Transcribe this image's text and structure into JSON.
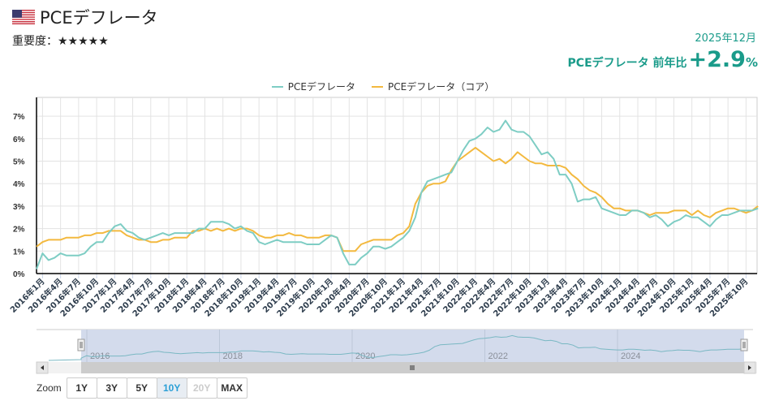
{
  "header": {
    "title": "PCEデフレータ",
    "importance_label": "重要度：",
    "importance_stars": "★★★★★",
    "date": "2025年12月",
    "headline_label": "PCEデフレータ 前年比",
    "headline_value": "+2.9",
    "headline_unit": "%"
  },
  "legend": [
    {
      "label": "PCEデフレータ",
      "color": "#7ecdc4"
    },
    {
      "label": "PCEデフレータ（コア）",
      "color": "#f3b93f"
    }
  ],
  "zoom": {
    "label": "Zoom",
    "buttons": [
      {
        "label": "1Y",
        "state": "normal"
      },
      {
        "label": "3Y",
        "state": "normal"
      },
      {
        "label": "5Y",
        "state": "normal"
      },
      {
        "label": "10Y",
        "state": "active"
      },
      {
        "label": "20Y",
        "state": "disabled"
      },
      {
        "label": "MAX",
        "state": "normal"
      }
    ]
  },
  "navigator": {
    "year_labels": [
      "2016",
      "2018",
      "2020",
      "2022",
      "2024"
    ]
  },
  "chart_data": {
    "type": "line",
    "title": "PCEデフレータ",
    "xlabel": "",
    "ylabel": "",
    "ylim": [
      0,
      7.5
    ],
    "y_ticks": [
      "0%",
      "1%",
      "2%",
      "3%",
      "4%",
      "5%",
      "6%",
      "7%"
    ],
    "x_tick_labels": [
      "2016年1月",
      "2016年4月",
      "2016年7月",
      "2016年10月",
      "2017年1月",
      "2017年4月",
      "2017年7月",
      "2017年10月",
      "2018年1月",
      "2018年4月",
      "2018年7月",
      "2018年10月",
      "2019年1月",
      "2019年4月",
      "2019年7月",
      "2019年10月",
      "2020年1月",
      "2020年4月",
      "2020年7月",
      "2020年10月",
      "2021年1月",
      "2021年4月",
      "2021年7月",
      "2021年10月",
      "2022年1月",
      "2022年4月",
      "2022年7月",
      "2022年10月",
      "2023年1月",
      "2023年4月",
      "2023年7月",
      "2023年10月",
      "2024年1月",
      "2024年4月",
      "2024年7月",
      "2024年10月",
      "2025年1月",
      "2025年4月",
      "2025年7月",
      "2025年10月"
    ],
    "grid": true,
    "legend_position": "top",
    "x_start": "2015年12月",
    "x_end": "2025年12月",
    "series": [
      {
        "name": "PCEデフレータ",
        "color": "#7ecdc4",
        "values": [
          0.2,
          0.9,
          0.6,
          0.7,
          0.9,
          0.8,
          0.8,
          0.8,
          0.9,
          1.2,
          1.4,
          1.4,
          1.8,
          2.1,
          2.2,
          1.9,
          1.8,
          1.6,
          1.5,
          1.6,
          1.7,
          1.8,
          1.7,
          1.8,
          1.8,
          1.8,
          1.8,
          2.0,
          2.0,
          2.3,
          2.3,
          2.3,
          2.2,
          2.0,
          2.1,
          1.9,
          1.8,
          1.4,
          1.3,
          1.4,
          1.5,
          1.4,
          1.4,
          1.4,
          1.4,
          1.3,
          1.3,
          1.3,
          1.5,
          1.7,
          1.6,
          0.9,
          0.4,
          0.4,
          0.7,
          0.9,
          1.2,
          1.2,
          1.1,
          1.2,
          1.4,
          1.6,
          1.9,
          2.5,
          3.6,
          4.1,
          4.2,
          4.3,
          4.4,
          4.5,
          5.0,
          5.5,
          5.9,
          6.0,
          6.2,
          6.5,
          6.3,
          6.4,
          6.8,
          6.4,
          6.3,
          6.3,
          6.1,
          5.7,
          5.3,
          5.4,
          5.1,
          4.4,
          4.4,
          4.0,
          3.2,
          3.3,
          3.3,
          3.4,
          2.9,
          2.8,
          2.7,
          2.6,
          2.6,
          2.8,
          2.8,
          2.7,
          2.5,
          2.6,
          2.4,
          2.1,
          2.3,
          2.4,
          2.6,
          2.5,
          2.5,
          2.3,
          2.1,
          2.4,
          2.6,
          2.6,
          2.7,
          2.8,
          2.8,
          2.8,
          2.9
        ]
      },
      {
        "name": "PCEデフレータ（コア）",
        "color": "#f3b93f",
        "values": [
          1.2,
          1.4,
          1.5,
          1.5,
          1.5,
          1.6,
          1.6,
          1.6,
          1.7,
          1.7,
          1.8,
          1.8,
          1.9,
          1.9,
          1.9,
          1.7,
          1.6,
          1.5,
          1.5,
          1.4,
          1.4,
          1.5,
          1.5,
          1.6,
          1.6,
          1.6,
          1.9,
          1.9,
          2.0,
          1.9,
          2.0,
          1.9,
          2.0,
          1.9,
          2.0,
          2.0,
          1.9,
          1.7,
          1.6,
          1.6,
          1.7,
          1.7,
          1.8,
          1.7,
          1.7,
          1.6,
          1.6,
          1.6,
          1.7,
          1.7,
          1.6,
          1.0,
          1.0,
          1.0,
          1.3,
          1.4,
          1.5,
          1.5,
          1.5,
          1.5,
          1.7,
          1.8,
          2.1,
          3.1,
          3.6,
          3.9,
          4.0,
          4.0,
          4.1,
          4.6,
          5.0,
          5.2,
          5.4,
          5.6,
          5.4,
          5.2,
          5.0,
          5.1,
          4.9,
          5.1,
          5.4,
          5.2,
          5.0,
          4.9,
          4.9,
          4.8,
          4.8,
          4.8,
          4.7,
          4.4,
          4.2,
          3.9,
          3.7,
          3.6,
          3.4,
          3.1,
          2.9,
          2.9,
          2.8,
          2.8,
          2.8,
          2.7,
          2.6,
          2.7,
          2.7,
          2.7,
          2.8,
          2.8,
          2.8,
          2.6,
          2.8,
          2.6,
          2.5,
          2.7,
          2.8,
          2.9,
          2.9,
          2.8,
          2.7,
          2.8,
          3.0
        ]
      }
    ]
  }
}
